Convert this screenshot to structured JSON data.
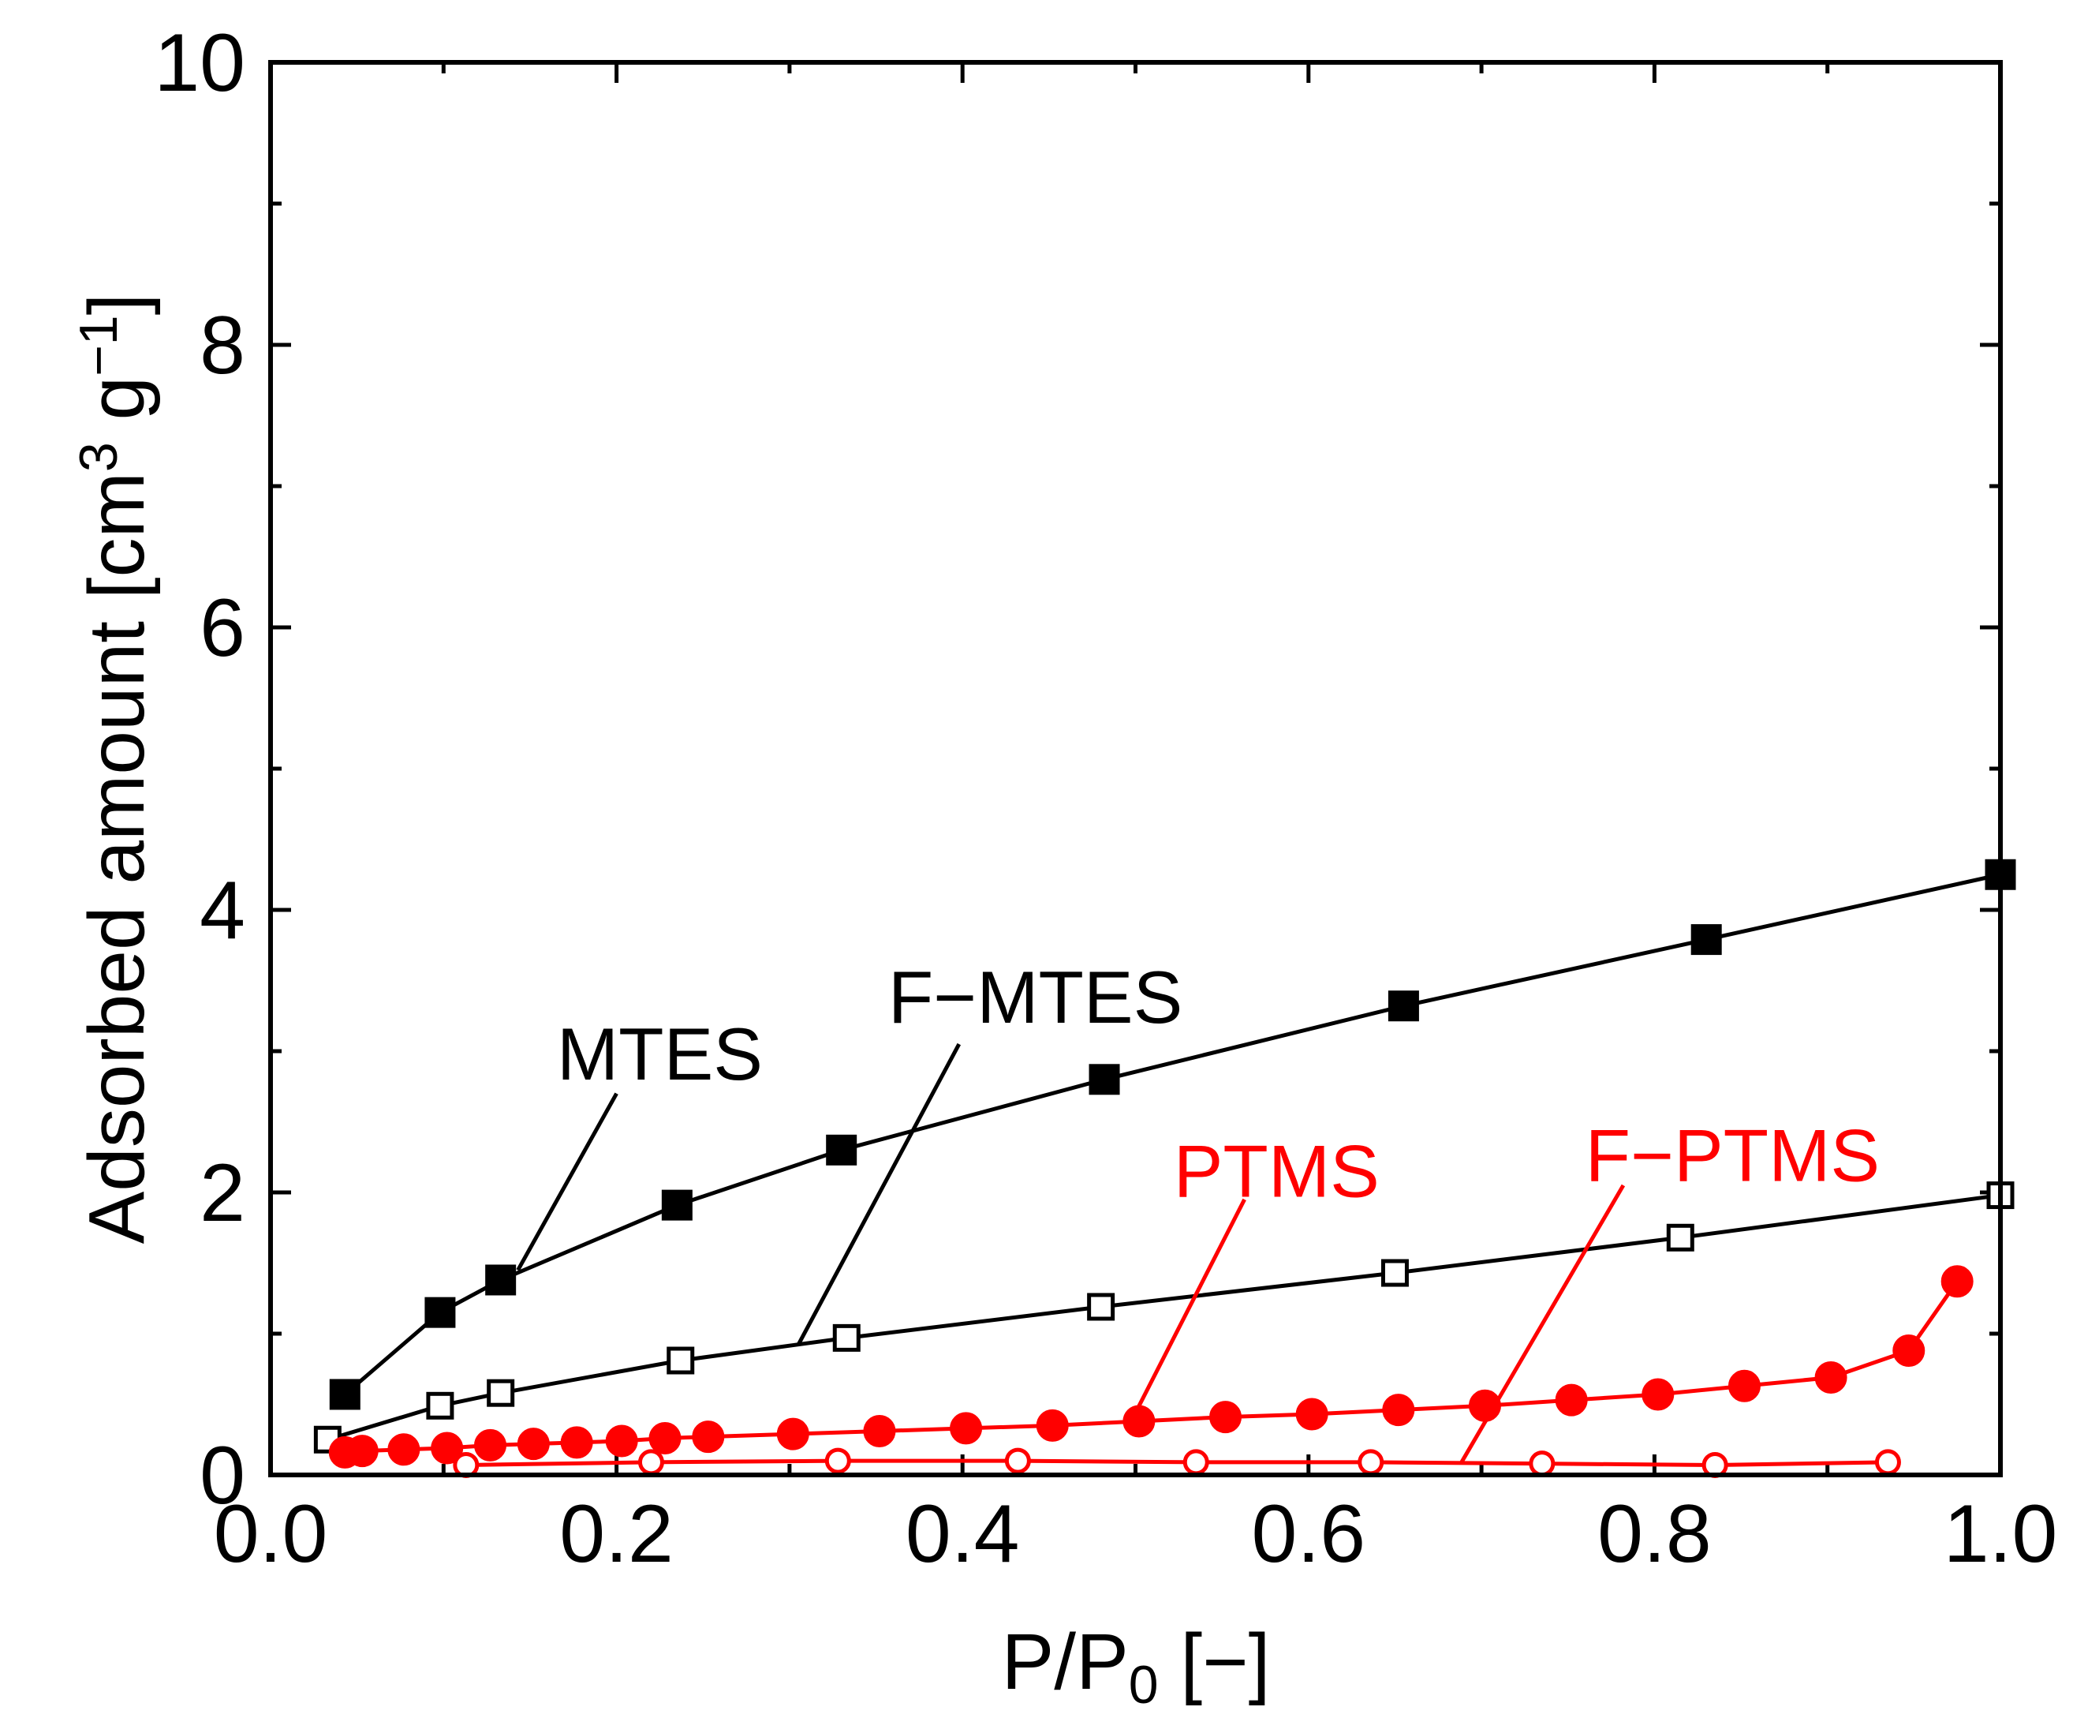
{
  "chart_data": {
    "type": "line",
    "title": "",
    "xlabel": {
      "main": "P/P",
      "sub": "0",
      "tail": " [−]"
    },
    "ylabel": {
      "main": "Adsorbed amount [cm",
      "sup1": "3",
      "mid": " g",
      "sup2": "−1",
      "tail": "]"
    },
    "xlim": [
      0,
      1.0
    ],
    "ylim": [
      0,
      10
    ],
    "xticks": [
      0.0,
      0.2,
      0.4,
      0.6,
      0.8,
      1.0
    ],
    "xtick_labels": [
      "0.0",
      "0.2",
      "0.4",
      "0.6",
      "0.8",
      "1.0"
    ],
    "yticks": [
      0,
      2,
      4,
      6,
      8,
      10
    ],
    "ytick_labels": [
      "0",
      "2",
      "4",
      "6",
      "8",
      "10"
    ],
    "grid": false,
    "colors": {
      "black": "#000000",
      "red": "#ff0000"
    },
    "series": [
      {
        "name": "MTES",
        "color": "#000000",
        "marker": "square",
        "filled": true,
        "x": [
          0.043,
          0.098,
          0.133,
          0.235,
          0.33,
          0.482,
          0.655,
          0.83,
          1.0
        ],
        "y": [
          0.57,
          1.15,
          1.38,
          1.91,
          2.3,
          2.8,
          3.32,
          3.79,
          4.25
        ]
      },
      {
        "name": "F−MTES",
        "color": "#000000",
        "marker": "square",
        "filled": false,
        "x": [
          0.033,
          0.098,
          0.133,
          0.237,
          0.333,
          0.48,
          0.65,
          0.815,
          1.0
        ],
        "y": [
          0.25,
          0.49,
          0.58,
          0.81,
          0.97,
          1.19,
          1.43,
          1.68,
          1.98
        ]
      },
      {
        "name": "PTMS",
        "color": "#ff0000",
        "marker": "circle",
        "filled": true,
        "x": [
          0.043,
          0.053,
          0.077,
          0.102,
          0.127,
          0.152,
          0.177,
          0.203,
          0.228,
          0.253,
          0.302,
          0.352,
          0.402,
          0.452,
          0.502,
          0.552,
          0.602,
          0.652,
          0.702,
          0.752,
          0.802,
          0.852,
          0.902,
          0.947,
          0.975
        ],
        "y": [
          0.16,
          0.17,
          0.18,
          0.19,
          0.21,
          0.22,
          0.23,
          0.24,
          0.26,
          0.27,
          0.29,
          0.31,
          0.33,
          0.35,
          0.38,
          0.41,
          0.43,
          0.46,
          0.49,
          0.53,
          0.57,
          0.63,
          0.69,
          0.88,
          1.37
        ]
      },
      {
        "name": "F−PTMS",
        "color": "#ff0000",
        "marker": "circle",
        "filled": false,
        "x": [
          0.113,
          0.22,
          0.328,
          0.432,
          0.535,
          0.636,
          0.735,
          0.835,
          0.935
        ],
        "y": [
          0.07,
          0.09,
          0.1,
          0.1,
          0.09,
          0.09,
          0.08,
          0.07,
          0.09
        ]
      }
    ],
    "annotations": [
      {
        "text": "MTES",
        "color": "#000000",
        "anchor": "middle",
        "label_at": [
          0.225,
          2.8
        ],
        "leader_from": [
          0.2,
          2.7
        ],
        "leader_to": [
          0.143,
          1.45
        ]
      },
      {
        "text": "F−MTES",
        "color": "#000000",
        "anchor": "start",
        "label_at": [
          0.357,
          3.2
        ],
        "leader_from": [
          0.398,
          3.05
        ],
        "leader_to": [
          0.305,
          0.92
        ]
      },
      {
        "text": "PTMS",
        "color": "#ff0000",
        "anchor": "start",
        "label_at": [
          0.522,
          1.97
        ],
        "leader_from": [
          0.563,
          1.95
        ],
        "leader_to": [
          0.5,
          0.44
        ]
      },
      {
        "text": "F−PTMS",
        "color": "#ff0000",
        "anchor": "start",
        "label_at": [
          0.76,
          2.08
        ],
        "leader_from": [
          0.782,
          2.05
        ],
        "leader_to": [
          0.688,
          0.08
        ]
      }
    ]
  }
}
